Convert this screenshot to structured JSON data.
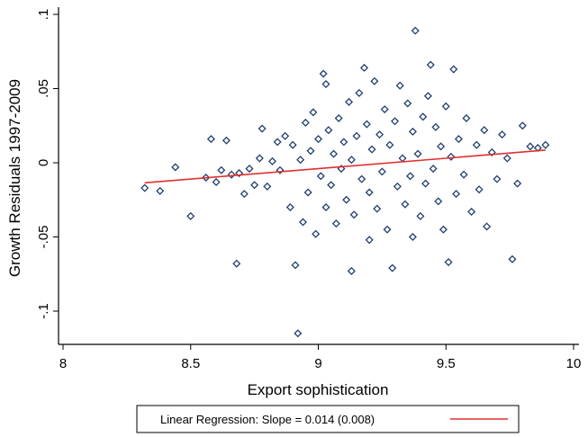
{
  "chart_data": {
    "type": "scatter",
    "xlabel": "Export sophistication",
    "ylabel": "Growth Residuals 1997-2009",
    "xlim": [
      8,
      10
    ],
    "ylim": [
      -0.12,
      0.1
    ],
    "x_ticks": [
      8,
      8.5,
      9,
      9.5,
      10
    ],
    "x_tick_labels": [
      "8",
      "8.5",
      "9",
      "9.5",
      "10"
    ],
    "y_ticks": [
      -0.1,
      -0.05,
      0,
      0.05,
      0.1
    ],
    "y_tick_labels": [
      "-.1",
      "-.05",
      "0",
      ".05",
      ".1"
    ],
    "grid": false,
    "legend_position": "bottom",
    "marker_color": "#1f3f6e",
    "line_color": "#e03030",
    "series": [
      {
        "marker": "hollow-diamond",
        "points": [
          [
            8.32,
            -0.017
          ],
          [
            8.38,
            -0.019
          ],
          [
            8.44,
            -0.003
          ],
          [
            8.5,
            -0.036
          ],
          [
            8.56,
            -0.01
          ],
          [
            8.58,
            0.016
          ],
          [
            8.6,
            -0.013
          ],
          [
            8.62,
            -0.005
          ],
          [
            8.64,
            0.015
          ],
          [
            8.66,
            -0.008
          ],
          [
            8.68,
            -0.068
          ],
          [
            8.69,
            -0.007
          ],
          [
            8.71,
            -0.021
          ],
          [
            8.73,
            -0.004
          ],
          [
            8.75,
            -0.015
          ],
          [
            8.77,
            0.003
          ],
          [
            8.78,
            0.023
          ],
          [
            8.8,
            -0.016
          ],
          [
            8.82,
            0.001
          ],
          [
            8.84,
            0.014
          ],
          [
            8.85,
            -0.005
          ],
          [
            8.87,
            0.018
          ],
          [
            8.89,
            -0.03
          ],
          [
            8.9,
            0.012
          ],
          [
            8.91,
            -0.069
          ],
          [
            8.92,
            -0.115
          ],
          [
            8.93,
            0.002
          ],
          [
            8.94,
            -0.04
          ],
          [
            8.95,
            0.027
          ],
          [
            8.96,
            -0.02
          ],
          [
            8.97,
            0.008
          ],
          [
            8.98,
            0.034
          ],
          [
            8.99,
            -0.048
          ],
          [
            9.0,
            0.016
          ],
          [
            9.01,
            -0.009
          ],
          [
            9.02,
            0.06
          ],
          [
            9.03,
            0.053
          ],
          [
            9.03,
            -0.03
          ],
          [
            9.04,
            0.022
          ],
          [
            9.05,
            -0.015
          ],
          [
            9.06,
            0.006
          ],
          [
            9.07,
            -0.041
          ],
          [
            9.08,
            0.03
          ],
          [
            9.09,
            -0.004
          ],
          [
            9.1,
            0.014
          ],
          [
            9.11,
            -0.025
          ],
          [
            9.12,
            0.041
          ],
          [
            9.13,
            -0.073
          ],
          [
            9.13,
            0.002
          ],
          [
            9.14,
            -0.035
          ],
          [
            9.15,
            0.018
          ],
          [
            9.16,
            0.047
          ],
          [
            9.17,
            -0.011
          ],
          [
            9.18,
            0.064
          ],
          [
            9.19,
            0.026
          ],
          [
            9.2,
            -0.02
          ],
          [
            9.2,
            -0.052
          ],
          [
            9.21,
            0.009
          ],
          [
            9.22,
            0.055
          ],
          [
            9.23,
            -0.031
          ],
          [
            9.24,
            0.019
          ],
          [
            9.25,
            -0.006
          ],
          [
            9.26,
            0.036
          ],
          [
            9.27,
            -0.045
          ],
          [
            9.28,
            0.012
          ],
          [
            9.29,
            -0.071
          ],
          [
            9.3,
            0.028
          ],
          [
            9.31,
            -0.016
          ],
          [
            9.32,
            0.052
          ],
          [
            9.33,
            0.003
          ],
          [
            9.34,
            -0.028
          ],
          [
            9.35,
            0.04
          ],
          [
            9.36,
            -0.009
          ],
          [
            9.37,
            0.021
          ],
          [
            9.37,
            -0.05
          ],
          [
            9.38,
            0.089
          ],
          [
            9.39,
            0.006
          ],
          [
            9.4,
            -0.036
          ],
          [
            9.41,
            0.031
          ],
          [
            9.42,
            -0.014
          ],
          [
            9.43,
            0.045
          ],
          [
            9.44,
            0.066
          ],
          [
            9.45,
            -0.004
          ],
          [
            9.46,
            0.024
          ],
          [
            9.47,
            -0.026
          ],
          [
            9.48,
            0.011
          ],
          [
            9.49,
            -0.045
          ],
          [
            9.5,
            0.038
          ],
          [
            9.51,
            -0.067
          ],
          [
            9.52,
            0.004
          ],
          [
            9.53,
            0.063
          ],
          [
            9.54,
            -0.021
          ],
          [
            9.55,
            0.016
          ],
          [
            9.57,
            -0.008
          ],
          [
            9.58,
            0.03
          ],
          [
            9.6,
            -0.033
          ],
          [
            9.62,
            0.012
          ],
          [
            9.63,
            -0.018
          ],
          [
            9.65,
            0.022
          ],
          [
            9.66,
            -0.043
          ],
          [
            9.68,
            0.007
          ],
          [
            9.7,
            -0.011
          ],
          [
            9.72,
            0.019
          ],
          [
            9.74,
            0.003
          ],
          [
            9.76,
            -0.065
          ],
          [
            9.78,
            -0.014
          ],
          [
            9.8,
            0.025
          ],
          [
            9.83,
            0.011
          ],
          [
            9.86,
            0.01
          ],
          [
            9.89,
            0.012
          ]
        ]
      },
      {
        "name": "Linear Regression: Slope = 0.014 (0.008)",
        "type": "line",
        "slope": 0.014,
        "points": [
          [
            8.32,
            -0.0135
          ],
          [
            9.89,
            0.0085
          ]
        ]
      }
    ],
    "legend": [
      "Linear Regression: Slope = 0.014 (0.008)"
    ]
  }
}
